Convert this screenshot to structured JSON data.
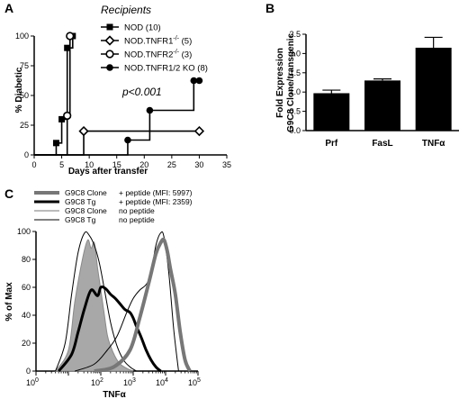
{
  "panels": {
    "a": "A",
    "b": "B",
    "c": "C"
  },
  "chart_data": [
    {
      "type": "line",
      "panel": "A",
      "ylabel": "% Diabetic",
      "xlabel": "Days after transfer",
      "xlim": [
        0,
        35
      ],
      "ylim": [
        0,
        100
      ],
      "xticks": [
        0,
        5,
        10,
        15,
        20,
        25,
        30,
        35
      ],
      "yticks": [
        0,
        25,
        50,
        75,
        100
      ],
      "legend_title": "Recipients",
      "legend_placement": "top-right",
      "annotation": "p<0.001",
      "series": [
        {
          "name": "NOD (10)",
          "label_main": "NOD",
          "label_sup": "",
          "label_count": " (10)",
          "marker": "square",
          "x": [
            0,
            4,
            5,
            6,
            7
          ],
          "y": [
            0,
            10,
            30,
            90,
            100
          ]
        },
        {
          "name": "NOD.TNFR1-/- (5)",
          "label_main": "NOD.TNFR1",
          "label_sup": "-/-",
          "label_count": " (5)",
          "marker": "diamond-open",
          "x": [
            0,
            9,
            30
          ],
          "y": [
            0,
            20,
            20
          ]
        },
        {
          "name": "NOD.TNFR2-/- (3)",
          "label_main": "NOD.TNFR2",
          "label_sup": "-/-",
          "label_count": " (3)",
          "marker": "circle-open",
          "x": [
            0,
            6,
            6.5
          ],
          "y": [
            0,
            33,
            100
          ]
        },
        {
          "name": "NOD.TNFR1/2 KO (8)",
          "label_main": "NOD.TNFR1/2 KO",
          "label_sup": "",
          "label_count": " (8)",
          "marker": "circle-filled",
          "x": [
            0,
            17,
            21,
            29,
            30
          ],
          "y": [
            0,
            12.5,
            37.5,
            62.5,
            62.5
          ]
        }
      ]
    },
    {
      "type": "bar",
      "panel": "B",
      "ylabel_line1": "Fold Expression",
      "ylabel_line2": "G9C8 Clone/transgenic",
      "categories": [
        "Prf",
        "FasL",
        "TNFα"
      ],
      "values": [
        0.97,
        1.3,
        2.15
      ],
      "errors": [
        0.08,
        0.04,
        0.27
      ],
      "ylim": [
        0,
        2.5
      ],
      "yticks": [
        "0.0",
        "0.5",
        "1.0",
        "1.5",
        "2.0",
        "2.5"
      ]
    },
    {
      "type": "area",
      "panel": "C",
      "ylabel": "% of Max",
      "xlabel": "TNFα",
      "xscale": "log",
      "xlim": [
        0,
        5
      ],
      "ylim": [
        0,
        100
      ],
      "yticks": [
        0,
        20,
        40,
        60,
        80,
        100
      ],
      "xtick_base": "10",
      "xtick_exponents": [
        "0",
        "2",
        "3",
        "4",
        "5"
      ],
      "legend_placement": "top",
      "legend": [
        {
          "name": "G9C8 Clone",
          "condition": "+ peptide (MFI: 5997)",
          "style": "thick-gray"
        },
        {
          "name": "G9C8 Tg",
          "condition": "+ peptide (MFI: 2359)",
          "style": "thick-black"
        },
        {
          "name": "G9C8 Clone",
          "condition": "no peptide",
          "style": "thin-gray"
        },
        {
          "name": "G9C8 Tg",
          "condition": "no peptide",
          "style": "thin-black"
        }
      ],
      "curves": [
        {
          "style": "filled-gray",
          "x": [
            0.6,
            1.0,
            1.2,
            1.45,
            1.6,
            1.7,
            1.8,
            1.9,
            2.0,
            2.1,
            2.2,
            2.3,
            2.45,
            2.6,
            2.8,
            3.0
          ],
          "y": [
            0,
            15,
            50,
            82,
            94,
            88,
            92,
            74,
            58,
            42,
            26,
            18,
            10,
            5,
            2,
            0
          ]
        },
        {
          "style": "thin-black",
          "x": [
            0.6,
            0.9,
            1.1,
            1.3,
            1.5,
            1.65,
            1.8,
            1.95,
            2.1,
            2.3,
            2.5,
            2.7,
            2.9,
            3.1
          ],
          "y": [
            0,
            20,
            55,
            85,
            99,
            97,
            90,
            78,
            60,
            35,
            18,
            8,
            3,
            0
          ]
        },
        {
          "style": "thick-black",
          "x": [
            0.7,
            1.1,
            1.3,
            1.5,
            1.7,
            1.9,
            2.0,
            2.15,
            2.3,
            2.45,
            2.6,
            2.75,
            2.9,
            3.0,
            3.1,
            3.25,
            3.4,
            3.55,
            3.7,
            3.85
          ],
          "y": [
            0,
            12,
            28,
            45,
            58,
            54,
            60,
            59,
            55,
            52,
            48,
            44,
            42,
            38,
            32,
            24,
            15,
            8,
            3,
            0
          ]
        },
        {
          "style": "thin-black",
          "x": [
            1.2,
            1.8,
            2.2,
            2.5,
            2.8,
            3.0,
            3.2,
            3.4,
            3.55,
            3.7,
            3.85,
            3.95,
            4.1,
            4.25,
            4.4
          ],
          "y": [
            0,
            5,
            15,
            25,
            42,
            52,
            58,
            62,
            70,
            90,
            99,
            96,
            70,
            30,
            0
          ]
        },
        {
          "style": "thick-gray",
          "x": [
            1.8,
            2.4,
            2.9,
            3.2,
            3.5,
            3.7,
            3.85,
            3.95,
            4.05,
            4.15,
            4.3,
            4.45,
            4.6,
            4.75
          ],
          "y": [
            0,
            3,
            15,
            38,
            65,
            84,
            92,
            94,
            86,
            73,
            55,
            28,
            8,
            0
          ]
        }
      ]
    }
  ]
}
